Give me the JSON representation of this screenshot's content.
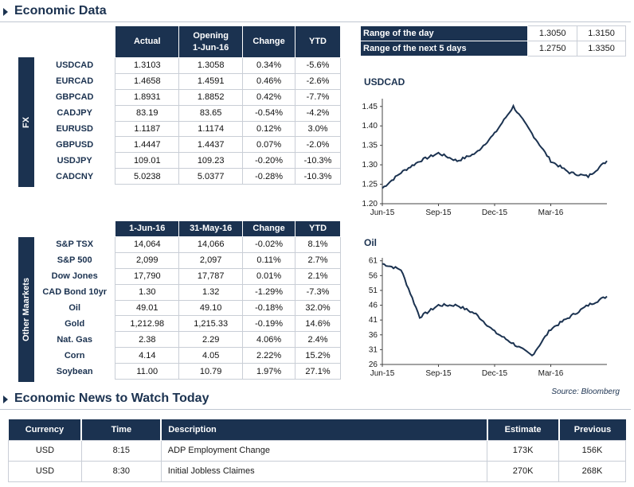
{
  "sections": {
    "economic_data": "Economic Data",
    "economic_news": "Economic News to Watch Today"
  },
  "fx": {
    "side_label": "FX",
    "headers": {
      "actual": "Actual",
      "opening_line1": "Opening",
      "opening_line2": "1-Jun-16",
      "change": "Change",
      "ytd": "YTD"
    },
    "rows": [
      {
        "name": "USDCAD",
        "actual": "1.3103",
        "opening": "1.3058",
        "change": "0.34%",
        "ytd": "-5.6%"
      },
      {
        "name": "EURCAD",
        "actual": "1.4658",
        "opening": "1.4591",
        "change": "0.46%",
        "ytd": "-2.6%"
      },
      {
        "name": "GBPCAD",
        "actual": "1.8931",
        "opening": "1.8852",
        "change": "0.42%",
        "ytd": "-7.7%"
      },
      {
        "name": "CADJPY",
        "actual": "83.19",
        "opening": "83.65",
        "change": "-0.54%",
        "ytd": "-4.2%"
      },
      {
        "name": "EURUSD",
        "actual": "1.1187",
        "opening": "1.1174",
        "change": "0.12%",
        "ytd": "3.0%"
      },
      {
        "name": "GBPUSD",
        "actual": "1.4447",
        "opening": "1.4437",
        "change": "0.07%",
        "ytd": "-2.0%"
      },
      {
        "name": "USDJPY",
        "actual": "109.01",
        "opening": "109.23",
        "change": "-0.20%",
        "ytd": "-10.3%"
      },
      {
        "name": "CADCNY",
        "actual": "5.0238",
        "opening": "5.0377",
        "change": "-0.28%",
        "ytd": "-10.3%"
      }
    ]
  },
  "range": {
    "day": {
      "label": "Range of the day",
      "low": "1.3050",
      "high": "1.3150"
    },
    "five_days": {
      "label": "Range of the next 5 days",
      "low": "1.2750",
      "high": "1.3350"
    }
  },
  "markets": {
    "side_label": "Other Maarkets",
    "headers": {
      "current": "1-Jun-16",
      "previous": "31-May-16",
      "change": "Change",
      "ytd": "YTD"
    },
    "rows": [
      {
        "name": "S&P TSX",
        "current": "14,064",
        "previous": "14,066",
        "change": "-0.02%",
        "ytd": "8.1%"
      },
      {
        "name": "S&P 500",
        "current": "2,099",
        "previous": "2,097",
        "change": "0.11%",
        "ytd": "2.7%"
      },
      {
        "name": "Dow Jones",
        "current": "17,790",
        "previous": "17,787",
        "change": "0.01%",
        "ytd": "2.1%"
      },
      {
        "name": "CAD Bond 10yr",
        "current": "1.30",
        "previous": "1.32",
        "change": "-1.29%",
        "ytd": "-7.3%"
      },
      {
        "name": "Oil",
        "current": "49.01",
        "previous": "49.10",
        "change": "-0.18%",
        "ytd": "32.0%"
      },
      {
        "name": "Gold",
        "current": "1,212.98",
        "previous": "1,215.33",
        "change": "-0.19%",
        "ytd": "14.6%"
      },
      {
        "name": "Nat. Gas",
        "current": "2.38",
        "previous": "2.29",
        "change": "4.06%",
        "ytd": "2.4%"
      },
      {
        "name": "Corn",
        "current": "4.14",
        "previous": "4.05",
        "change": "2.22%",
        "ytd": "15.2%"
      },
      {
        "name": "Soybean",
        "current": "11.00",
        "previous": "10.79",
        "change": "1.97%",
        "ytd": "27.1%"
      }
    ]
  },
  "source": "Source: Bloomberg",
  "news": {
    "headers": {
      "currency": "Currency",
      "time": "Time",
      "description": "Description",
      "estimate": "Estimate",
      "previous": "Previous"
    },
    "rows": [
      {
        "currency": "USD",
        "time": "8:15",
        "description": "ADP Employment Change",
        "estimate": "173K",
        "previous": "156K"
      },
      {
        "currency": "USD",
        "time": "8:30",
        "description": "Initial Jobless Claimes",
        "estimate": "270K",
        "previous": "268K"
      }
    ]
  },
  "colors": {
    "navy": "#1b3250",
    "positive": "#1f9a3a",
    "negative": "#d11a1a"
  },
  "chart_data": [
    {
      "type": "line",
      "title": "USDCAD",
      "x": [
        "2015-06",
        "2015-07",
        "2015-08",
        "2015-09",
        "2015-10",
        "2015-11",
        "2015-12",
        "2016-01",
        "2016-02",
        "2016-03",
        "2016-04",
        "2016-05",
        "2016-06"
      ],
      "series": [
        {
          "values": [
            1.24,
            1.28,
            1.31,
            1.33,
            1.31,
            1.33,
            1.38,
            1.45,
            1.38,
            1.31,
            1.28,
            1.27,
            1.31
          ]
        }
      ],
      "xticks": [
        "Jun-15",
        "Sep-15",
        "Dec-15",
        "Mar-16"
      ],
      "yticks": [
        "1.20",
        "1.25",
        "1.30",
        "1.35",
        "1.40",
        "1.45"
      ],
      "ylim": [
        1.2,
        1.47
      ]
    },
    {
      "type": "line",
      "title": "Oil",
      "x": [
        "2015-06",
        "2015-07",
        "2015-08",
        "2015-09",
        "2015-10",
        "2015-11",
        "2015-12",
        "2016-01",
        "2016-02",
        "2016-03",
        "2016-04",
        "2016-05",
        "2016-06"
      ],
      "series": [
        {
          "values": [
            60,
            58,
            42,
            46,
            46,
            43,
            37,
            33,
            29,
            38,
            42,
            46,
            49
          ]
        }
      ],
      "xticks": [
        "Jun-15",
        "Sep-15",
        "Dec-15",
        "Mar-16"
      ],
      "yticks": [
        "26",
        "31",
        "36",
        "41",
        "46",
        "51",
        "56",
        "61"
      ],
      "ylim": [
        26,
        62
      ]
    }
  ]
}
